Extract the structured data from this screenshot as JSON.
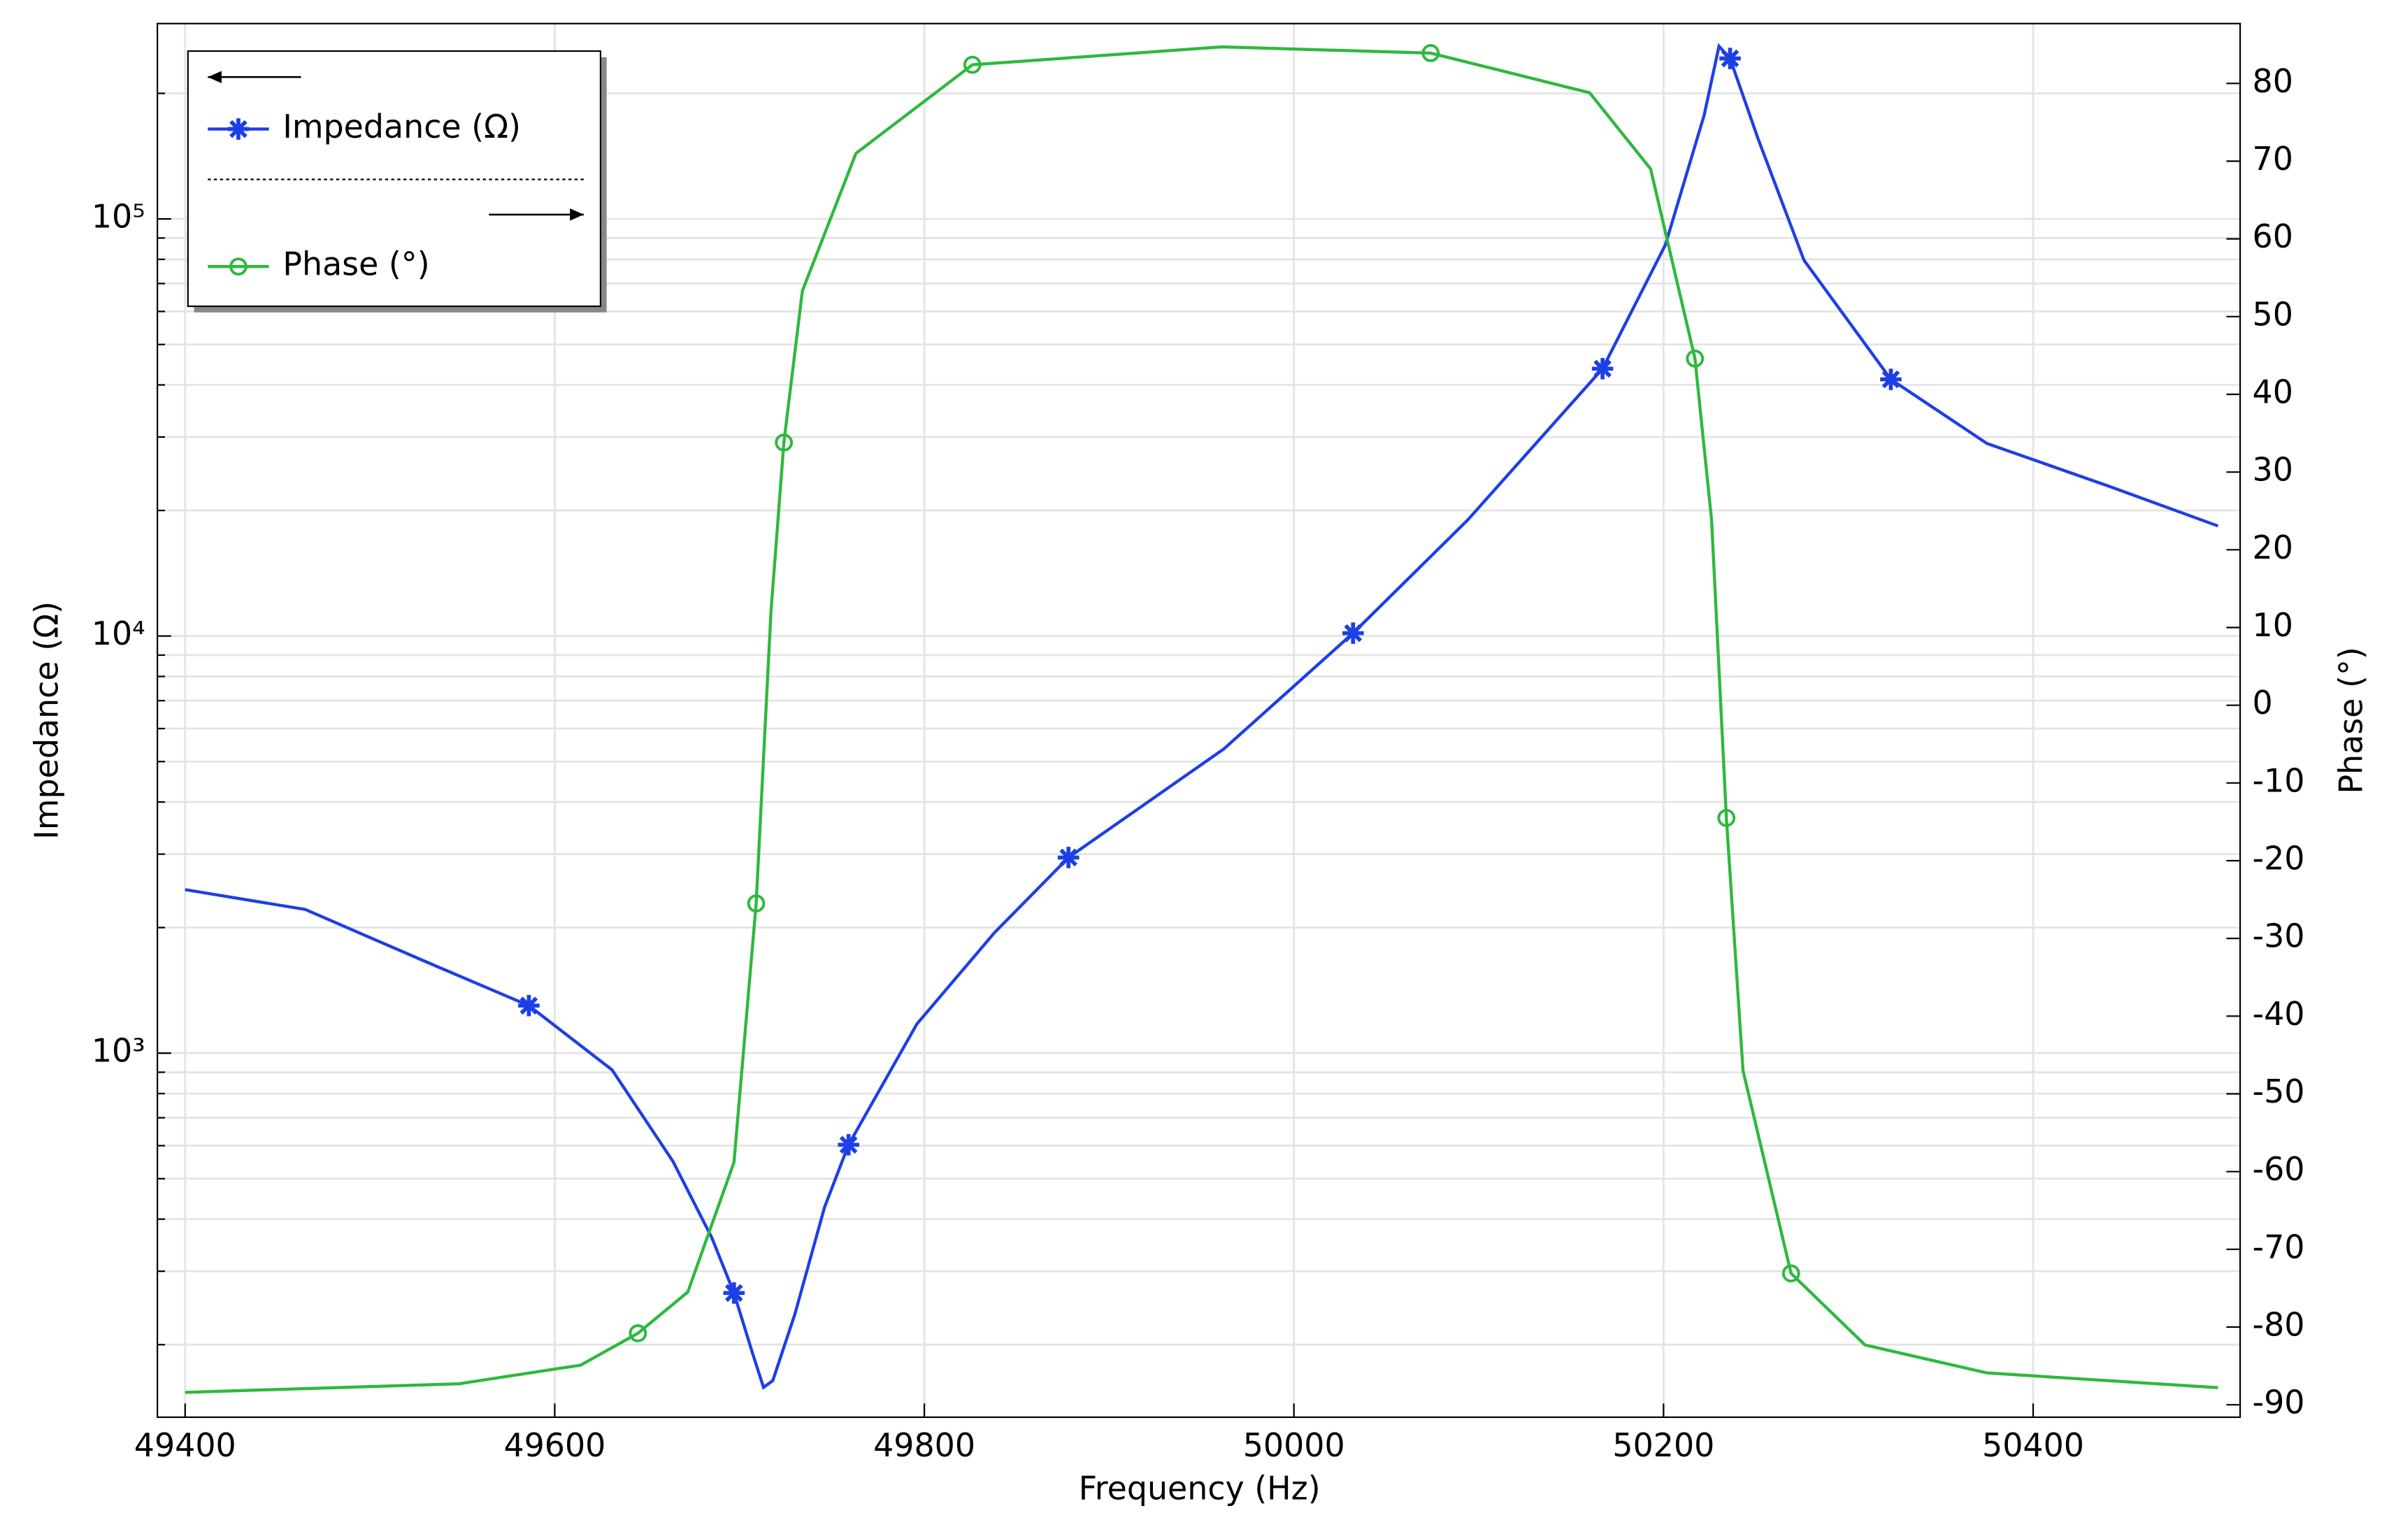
{
  "chart_data": {
    "type": "line",
    "xlabel": "Frequency (Hz)",
    "ylabel": "Impedance (Ω)",
    "y2label": "Phase (°)",
    "xlim": [
      49385,
      50512
    ],
    "xticks": [
      49400,
      49600,
      49800,
      50000,
      50200,
      50400
    ],
    "ylog": true,
    "ylim": [
      134,
      294000
    ],
    "yticks": [
      {
        "value": 1000,
        "label": "10³"
      },
      {
        "value": 10000,
        "label": "10⁴"
      },
      {
        "value": 100000,
        "label": "10⁵"
      }
    ],
    "yminorticks": [
      200,
      300,
      400,
      500,
      600,
      700,
      800,
      900,
      2000,
      3000,
      4000,
      5000,
      6000,
      7000,
      8000,
      9000,
      20000,
      30000,
      40000,
      50000,
      60000,
      70000,
      80000,
      90000,
      200000
    ],
    "y2lim": [
      -91.6,
      87.7
    ],
    "y2ticks": [
      -90,
      -80,
      -70,
      -60,
      -50,
      -40,
      -30,
      -20,
      -10,
      0,
      10,
      20,
      30,
      40,
      50,
      60,
      70,
      80
    ],
    "grid": true,
    "legend": "upper left",
    "series": [
      {
        "name": "Impedance (Ω)",
        "color": "#1d3fe6",
        "axis": "y",
        "marker": "asterisk",
        "x": [
          49400,
          49465,
          49532,
          49586,
          49631,
          49664,
          49685,
          49697,
          49707,
          49713,
          49718,
          49730,
          49746,
          49759,
          49796,
          49838,
          49878,
          49962,
          50032,
          50094,
          50167,
          50201,
          50222,
          50230,
          50236,
          50251,
          50276,
          50323,
          50375,
          50441,
          50500
        ],
        "values": [
          2466,
          2210,
          1644,
          1300,
          912,
          550,
          361,
          266,
          191,
          158,
          164,
          237,
          427,
          603,
          1175,
          1945,
          2944,
          5358,
          10160,
          18970,
          43750,
          86670,
          177500,
          259400,
          242500,
          156300,
          79600,
          41250,
          28950,
          22860,
          18360
        ],
        "marker_x": [
          49586,
          49697,
          49759,
          49878,
          50032,
          50167,
          50236,
          50323
        ],
        "marker_values": [
          1300,
          266,
          603,
          2944,
          10160,
          43750,
          242500,
          41250
        ]
      },
      {
        "name": "Phase (°)",
        "color": "#2fb83e",
        "axis": "y2",
        "marker": "circle",
        "x": [
          49400,
          49548,
          49614,
          49645,
          49672,
          49697,
          49709,
          49717,
          49724,
          49734,
          49763,
          49826,
          49961,
          50074,
          50160,
          50193,
          50217,
          50226,
          50234,
          50243,
          50269,
          50309,
          50375,
          50500
        ],
        "values": [
          -88.4,
          -87.3,
          -84.9,
          -80.8,
          -75.5,
          -58.8,
          -25.5,
          12.0,
          33.8,
          53.3,
          71.0,
          82.4,
          84.7,
          83.9,
          78.8,
          69.0,
          44.6,
          23.8,
          -14.5,
          -47.0,
          -73.1,
          -82.3,
          -85.9,
          -87.8
        ],
        "marker_x": [
          49645,
          49709,
          49724,
          49826,
          50074,
          50217,
          50234,
          50269
        ],
        "marker_values": [
          -80.8,
          -25.5,
          33.8,
          82.4,
          83.9,
          44.6,
          -14.5,
          -73.1
        ]
      }
    ]
  }
}
